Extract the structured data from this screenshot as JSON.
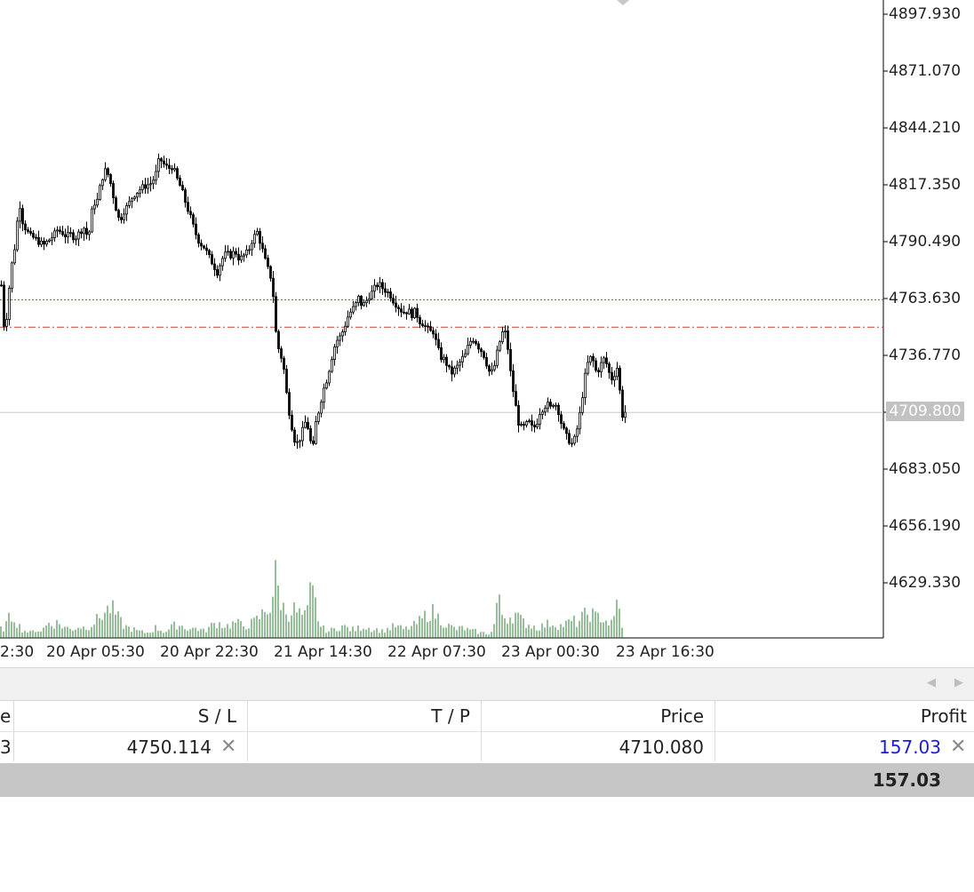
{
  "chart": {
    "price_axis": [
      "4897.930",
      "4871.070",
      "4844.210",
      "4817.350",
      "4790.490",
      "4763.630",
      "4736.770",
      "4683.050",
      "4656.190",
      "4629.330"
    ],
    "current_price_badge": "4709.800",
    "time_axis": [
      "2:30",
      "20 Apr 05:30",
      "20 Apr 22:30",
      "21 Apr 14:30",
      "22 Apr 07:30",
      "23 Apr 00:30",
      "23 Apr 16:30"
    ],
    "colors": {
      "candle": "#000000",
      "volume": "#2e7d32",
      "sl_line": "#d43a2a",
      "entry_line": "#3c8a3c",
      "current_line": "#c8c8c8"
    }
  },
  "chart_data": {
    "type": "candlestick",
    "y_range": [
      4610,
      4905
    ],
    "stop_loss_level": 4750.114,
    "entry_level": 4763.0,
    "current_price": 4709.8,
    "close_path": [
      [
        0,
        4770
      ],
      [
        4,
        4745
      ],
      [
        8,
        4765
      ],
      [
        12,
        4780
      ],
      [
        16,
        4790
      ],
      [
        20,
        4810
      ],
      [
        24,
        4800
      ],
      [
        28,
        4796
      ],
      [
        33,
        4793
      ],
      [
        38,
        4792
      ],
      [
        43,
        4790
      ],
      [
        48,
        4789
      ],
      [
        53,
        4791
      ],
      [
        58,
        4793
      ],
      [
        63,
        4796
      ],
      [
        68,
        4795
      ],
      [
        73,
        4793
      ],
      [
        78,
        4794
      ],
      [
        83,
        4792
      ],
      [
        88,
        4795
      ],
      [
        93,
        4797
      ],
      [
        98,
        4792
      ],
      [
        103,
        4808
      ],
      [
        108,
        4810
      ],
      [
        113,
        4820
      ],
      [
        118,
        4825
      ],
      [
        123,
        4818
      ],
      [
        128,
        4808
      ],
      [
        133,
        4800
      ],
      [
        138,
        4805
      ],
      [
        143,
        4808
      ],
      [
        148,
        4812
      ],
      [
        153,
        4814
      ],
      [
        158,
        4816
      ],
      [
        163,
        4817
      ],
      [
        168,
        4818
      ],
      [
        173,
        4821
      ],
      [
        178,
        4830
      ],
      [
        183,
        4827
      ],
      [
        188,
        4825
      ],
      [
        193,
        4826
      ],
      [
        198,
        4820
      ],
      [
        203,
        4815
      ],
      [
        208,
        4808
      ],
      [
        213,
        4802
      ],
      [
        218,
        4795
      ],
      [
        223,
        4790
      ],
      [
        228,
        4788
      ],
      [
        233,
        4784
      ],
      [
        238,
        4780
      ],
      [
        243,
        4776
      ],
      [
        248,
        4782
      ],
      [
        253,
        4785
      ],
      [
        258,
        4784
      ],
      [
        263,
        4786
      ],
      [
        268,
        4782
      ],
      [
        273,
        4784
      ],
      [
        278,
        4786
      ],
      [
        283,
        4792
      ],
      [
        288,
        4795
      ],
      [
        293,
        4788
      ],
      [
        298,
        4780
      ],
      [
        303,
        4774
      ],
      [
        306,
        4765
      ],
      [
        310,
        4742
      ],
      [
        314,
        4738
      ],
      [
        318,
        4730
      ],
      [
        322,
        4715
      ],
      [
        326,
        4705
      ],
      [
        330,
        4697
      ],
      [
        334,
        4695
      ],
      [
        338,
        4700
      ],
      [
        342,
        4705
      ],
      [
        346,
        4702
      ],
      [
        350,
        4690
      ],
      [
        354,
        4705
      ],
      [
        358,
        4712
      ],
      [
        362,
        4720
      ],
      [
        366,
        4725
      ],
      [
        370,
        4732
      ],
      [
        374,
        4740
      ],
      [
        378,
        4744
      ],
      [
        382,
        4746
      ],
      [
        386,
        4750
      ],
      [
        390,
        4755
      ],
      [
        394,
        4758
      ],
      [
        398,
        4760
      ],
      [
        402,
        4764
      ],
      [
        406,
        4760
      ],
      [
        410,
        4762
      ],
      [
        414,
        4765
      ],
      [
        418,
        4767
      ],
      [
        422,
        4770
      ],
      [
        426,
        4770
      ],
      [
        430,
        4768
      ],
      [
        434,
        4767
      ],
      [
        438,
        4765
      ],
      [
        442,
        4762
      ],
      [
        446,
        4760
      ],
      [
        450,
        4758
      ],
      [
        454,
        4757
      ],
      [
        458,
        4758
      ],
      [
        462,
        4756
      ],
      [
        466,
        4758
      ],
      [
        470,
        4753
      ],
      [
        474,
        4752
      ],
      [
        478,
        4750
      ],
      [
        482,
        4748
      ],
      [
        486,
        4748
      ],
      [
        490,
        4742
      ],
      [
        494,
        4736
      ],
      [
        498,
        4735
      ],
      [
        502,
        4732
      ],
      [
        506,
        4728
      ],
      [
        510,
        4730
      ],
      [
        514,
        4732
      ],
      [
        518,
        4735
      ],
      [
        522,
        4737
      ],
      [
        526,
        4742
      ],
      [
        530,
        4745
      ],
      [
        534,
        4743
      ],
      [
        538,
        4740
      ],
      [
        542,
        4738
      ],
      [
        546,
        4733
      ],
      [
        550,
        4728
      ],
      [
        554,
        4730
      ],
      [
        558,
        4738
      ],
      [
        562,
        4745
      ],
      [
        566,
        4750
      ],
      [
        570,
        4740
      ],
      [
        574,
        4725
      ],
      [
        578,
        4715
      ],
      [
        582,
        4705
      ],
      [
        586,
        4702
      ],
      [
        590,
        4704
      ],
      [
        594,
        4705
      ],
      [
        598,
        4702
      ],
      [
        602,
        4704
      ],
      [
        606,
        4710
      ],
      [
        610,
        4712
      ],
      [
        614,
        4714
      ],
      [
        618,
        4712
      ],
      [
        622,
        4715
      ],
      [
        626,
        4712
      ],
      [
        630,
        4705
      ],
      [
        634,
        4700
      ],
      [
        638,
        4697
      ],
      [
        642,
        4695
      ],
      [
        646,
        4698
      ],
      [
        650,
        4706
      ],
      [
        654,
        4718
      ],
      [
        658,
        4730
      ],
      [
        662,
        4736
      ],
      [
        666,
        4734
      ],
      [
        670,
        4728
      ],
      [
        674,
        4732
      ],
      [
        678,
        4735
      ],
      [
        682,
        4732
      ],
      [
        686,
        4725
      ],
      [
        690,
        4728
      ],
      [
        694,
        4732
      ],
      [
        698,
        4708
      ],
      [
        702,
        4710
      ]
    ],
    "volume_path": [
      [
        0,
        10
      ],
      [
        5,
        12
      ],
      [
        10,
        22
      ],
      [
        15,
        28
      ],
      [
        20,
        16
      ],
      [
        25,
        10
      ],
      [
        30,
        8
      ],
      [
        35,
        6
      ],
      [
        40,
        10
      ],
      [
        45,
        8
      ],
      [
        50,
        12
      ],
      [
        55,
        18
      ],
      [
        60,
        16
      ],
      [
        65,
        18
      ],
      [
        70,
        14
      ],
      [
        75,
        12
      ],
      [
        80,
        10
      ],
      [
        85,
        12
      ],
      [
        90,
        14
      ],
      [
        95,
        12
      ],
      [
        100,
        14
      ],
      [
        105,
        18
      ],
      [
        110,
        22
      ],
      [
        115,
        28
      ],
      [
        120,
        32
      ],
      [
        125,
        36
      ],
      [
        130,
        28
      ],
      [
        135,
        20
      ],
      [
        140,
        14
      ],
      [
        145,
        12
      ],
      [
        150,
        10
      ],
      [
        155,
        8
      ],
      [
        160,
        7
      ],
      [
        165,
        6
      ],
      [
        170,
        8
      ],
      [
        175,
        12
      ],
      [
        180,
        10
      ],
      [
        185,
        7
      ],
      [
        190,
        10
      ],
      [
        195,
        14
      ],
      [
        200,
        16
      ],
      [
        205,
        14
      ],
      [
        210,
        12
      ],
      [
        215,
        10
      ],
      [
        220,
        12
      ],
      [
        225,
        10
      ],
      [
        230,
        8
      ],
      [
        235,
        12
      ],
      [
        240,
        16
      ],
      [
        245,
        18
      ],
      [
        250,
        16
      ],
      [
        255,
        14
      ],
      [
        260,
        16
      ],
      [
        265,
        18
      ],
      [
        270,
        16
      ],
      [
        275,
        14
      ],
      [
        280,
        16
      ],
      [
        285,
        18
      ],
      [
        290,
        22
      ],
      [
        295,
        28
      ],
      [
        300,
        34
      ],
      [
        305,
        38
      ],
      [
        310,
        72
      ],
      [
        315,
        48
      ],
      [
        320,
        32
      ],
      [
        325,
        30
      ],
      [
        330,
        34
      ],
      [
        335,
        30
      ],
      [
        340,
        26
      ],
      [
        345,
        24
      ],
      [
        350,
        58
      ],
      [
        355,
        40
      ],
      [
        360,
        14
      ],
      [
        365,
        10
      ],
      [
        370,
        8
      ],
      [
        375,
        10
      ],
      [
        380,
        12
      ],
      [
        385,
        14
      ],
      [
        390,
        12
      ],
      [
        395,
        10
      ],
      [
        400,
        10
      ],
      [
        405,
        12
      ],
      [
        410,
        14
      ],
      [
        415,
        12
      ],
      [
        420,
        10
      ],
      [
        425,
        10
      ],
      [
        430,
        8
      ],
      [
        435,
        10
      ],
      [
        440,
        12
      ],
      [
        445,
        14
      ],
      [
        450,
        12
      ],
      [
        455,
        10
      ],
      [
        460,
        12
      ],
      [
        465,
        14
      ],
      [
        470,
        18
      ],
      [
        475,
        22
      ],
      [
        480,
        28
      ],
      [
        485,
        32
      ],
      [
        490,
        28
      ],
      [
        495,
        22
      ],
      [
        500,
        18
      ],
      [
        505,
        14
      ],
      [
        510,
        12
      ],
      [
        515,
        10
      ],
      [
        520,
        12
      ],
      [
        525,
        10
      ],
      [
        530,
        8
      ],
      [
        535,
        8
      ],
      [
        540,
        6
      ],
      [
        545,
        6
      ],
      [
        550,
        5
      ],
      [
        555,
        8
      ],
      [
        560,
        48
      ],
      [
        565,
        28
      ],
      [
        570,
        24
      ],
      [
        575,
        26
      ],
      [
        580,
        28
      ],
      [
        585,
        22
      ],
      [
        590,
        18
      ],
      [
        595,
        16
      ],
      [
        600,
        14
      ],
      [
        605,
        12
      ],
      [
        610,
        14
      ],
      [
        615,
        16
      ],
      [
        620,
        18
      ],
      [
        625,
        16
      ],
      [
        630,
        14
      ],
      [
        635,
        16
      ],
      [
        640,
        18
      ],
      [
        645,
        20
      ],
      [
        650,
        18
      ],
      [
        655,
        24
      ],
      [
        660,
        28
      ],
      [
        665,
        30
      ],
      [
        670,
        24
      ],
      [
        675,
        26
      ],
      [
        680,
        22
      ],
      [
        685,
        18
      ],
      [
        690,
        16
      ],
      [
        696,
        54
      ],
      [
        700,
        10
      ]
    ]
  },
  "table": {
    "columns": [
      {
        "label": "e"
      },
      {
        "label": "S / L"
      },
      {
        "label": "T / P"
      },
      {
        "label": "Price"
      },
      {
        "label": "Profit"
      }
    ],
    "row": {
      "col0": "3",
      "sl": "4750.114",
      "tp": "",
      "price": "4710.080",
      "profit": "157.03",
      "profit_color": "#1a1adf"
    },
    "total": "157.03",
    "close_glyph": "✕"
  },
  "scroll": {
    "left_glyph": "◀",
    "right_glyph": "▶"
  }
}
